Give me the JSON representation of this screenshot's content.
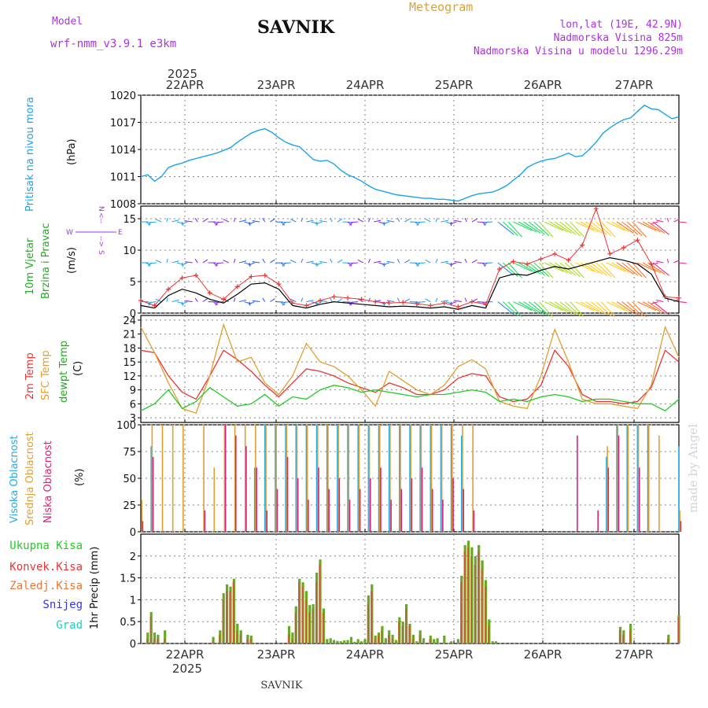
{
  "header": {
    "model_label": "Model",
    "model_name": "wrf-nmm_v3.9.1 e3km",
    "title": "SAVNIK",
    "meteogram": "Meteogram",
    "lonlat": "lon,lat (19E, 42.9N)",
    "altitude": "Nadmorska Visina 825m",
    "model_altitude": "Nadmorska Visina u modelu 1296.29m"
  },
  "top_axis": {
    "year": "2025",
    "dates": [
      "22APR",
      "23APR",
      "24APR",
      "25APR",
      "26APR",
      "27APR"
    ]
  },
  "bottom_axis": {
    "year": "2025",
    "dates": [
      "22APR",
      "23APR",
      "24APR",
      "25APR",
      "26APR",
      "27APR"
    ]
  },
  "footer": {
    "station": "SAVNIK"
  },
  "signature": "made by Angel",
  "colors": {
    "pressure": "#1aa3e8",
    "wind_speed": "#000000",
    "gust": "#ee3333",
    "temp2m": "#ee3333",
    "sfc_temp": "#e0a030",
    "dewpt": "#22cc22",
    "cloud_high": "#22aaee",
    "cloud_mid": "#e0a030",
    "cloud_low": "#dd2277",
    "precip_total": "#22cc22",
    "precip_conv": "#ee3333",
    "precip_frozen": "#ee7733",
    "snow": "#3333ee",
    "hail": "#22ccbb",
    "purple_label": "#aa33dd"
  },
  "panels": {
    "pressure": {
      "label": "Pritisak na nivou mora",
      "unit": "(hPa)",
      "ticks": [
        "1008",
        "1011",
        "1014",
        "1017",
        "1020"
      ]
    },
    "wind": {
      "label1": "10m Vjetar",
      "label2": "Brzina i Pravac",
      "unit": "(m/s)",
      "compass": {
        "n": "N",
        "s": "S",
        "w": "W",
        "e": "E",
        "up": "<--",
        "dn": "-->"
      },
      "ticks": [
        "0",
        "5",
        "10",
        "15"
      ]
    },
    "temp": {
      "label1": "2m Temp",
      "label2": "SFC Temp",
      "label3": "dewpt Temp",
      "unit": "(C)",
      "ticks": [
        "3",
        "6",
        "9",
        "12",
        "15",
        "18",
        "21",
        "24"
      ]
    },
    "cloud": {
      "label1": "Visoka Oblacnost",
      "label2": "Srednja Oblacnost",
      "label3": "Niska Oblacnost",
      "unit": "(%)",
      "ticks": [
        "0",
        "25",
        "50",
        "75",
        "100"
      ]
    },
    "precip": {
      "legend": [
        "Ukupna Kisa",
        "Konvek.Kisa",
        "Zaledj.Kisa",
        "Snijeg",
        "Grad"
      ],
      "ylabel": "1hr Precip (mm)",
      "ticks": [
        "0",
        "0.5",
        "1",
        "1.5",
        "2"
      ]
    }
  },
  "chart_data": [
    {
      "type": "line",
      "title": "Pritisak na nivou mora",
      "ylabel": "hPa",
      "ylim": [
        1008,
        1020
      ],
      "x_hours": [
        0,
        2,
        4,
        6,
        8,
        10,
        12,
        14,
        16,
        18,
        20,
        22,
        24,
        26,
        28,
        30,
        32,
        34,
        36,
        38,
        40,
        42,
        44,
        46,
        48,
        50,
        52,
        54,
        56,
        58,
        60,
        62,
        64,
        66,
        68,
        70,
        72,
        74,
        76,
        78,
        80,
        82,
        84,
        86,
        88,
        90,
        92,
        94,
        96,
        98,
        100,
        102,
        104,
        106,
        108,
        110,
        112,
        114,
        116,
        118,
        120,
        122,
        124,
        126,
        128,
        130,
        132,
        134,
        136,
        138,
        140,
        142,
        144,
        146,
        148,
        150,
        152,
        154,
        156
      ],
      "values": [
        1011,
        1011.2,
        1010.5,
        1011,
        1012,
        1012.3,
        1012.5,
        1012.8,
        1013,
        1013.2,
        1013.4,
        1013.6,
        1013.9,
        1014.2,
        1014.8,
        1015.3,
        1015.8,
        1016.1,
        1016.3,
        1015.9,
        1015.3,
        1014.8,
        1014.5,
        1014.3,
        1013.6,
        1012.9,
        1012.7,
        1012.8,
        1012.4,
        1011.7,
        1011.2,
        1010.9,
        1010.5,
        1010.0,
        1009.6,
        1009.4,
        1009.2,
        1009.0,
        1008.9,
        1008.8,
        1008.7,
        1008.6,
        1008.6,
        1008.5,
        1008.5,
        1008.4,
        1008.3,
        1008.6,
        1008.9,
        1009.1,
        1009.2,
        1009.3,
        1009.6,
        1010.0,
        1010.6,
        1011.2,
        1012.0,
        1012.4,
        1012.7,
        1012.9,
        1013.0,
        1013.3,
        1013.6,
        1013.2,
        1013.3,
        1014.0,
        1014.8,
        1015.8,
        1016.4,
        1016.9,
        1017.3,
        1017.5,
        1018.2,
        1018.9,
        1018.5,
        1018.4,
        1017.9,
        1017.4,
        1017.6
      ]
    },
    {
      "type": "line",
      "title": "10m Vjetar Brzina i Pravac",
      "ylabel": "m/s",
      "ylim": [
        0,
        17
      ],
      "series": [
        {
          "name": "wind speed",
          "x_hours": [
            0,
            4,
            8,
            12,
            16,
            20,
            24,
            28,
            32,
            36,
            40,
            44,
            48,
            52,
            56,
            60,
            64,
            68,
            72,
            76,
            80,
            84,
            88,
            92,
            96,
            100,
            104,
            108,
            112,
            116,
            120,
            124,
            128,
            132,
            136,
            140,
            144,
            148,
            152,
            156
          ],
          "values": [
            1.2,
            0.8,
            2.8,
            3.8,
            3.2,
            2.2,
            1.6,
            3.0,
            4.6,
            4.8,
            3.8,
            1.2,
            0.8,
            1.4,
            1.8,
            1.6,
            1.4,
            1.2,
            1.0,
            1.1,
            1.0,
            0.8,
            1.0,
            0.6,
            1.2,
            0.8,
            5.6,
            6.2,
            6.0,
            6.8,
            7.4,
            7.0,
            7.6,
            8.2,
            8.8,
            8.4,
            7.8,
            6.2,
            2.4,
            1.8
          ]
        },
        {
          "name": "gust",
          "x_hours": [
            0,
            4,
            8,
            12,
            16,
            20,
            24,
            28,
            32,
            36,
            40,
            44,
            48,
            52,
            56,
            60,
            64,
            68,
            72,
            76,
            80,
            84,
            88,
            92,
            96,
            100,
            104,
            108,
            112,
            116,
            120,
            124,
            128,
            132,
            136,
            140,
            144,
            148,
            152,
            156
          ],
          "values": [
            2.0,
            1.2,
            3.8,
            5.6,
            6.0,
            3.2,
            2.2,
            4.2,
            5.8,
            6.0,
            4.6,
            1.6,
            1.2,
            2.0,
            2.6,
            2.4,
            2.2,
            1.8,
            1.6,
            1.7,
            1.5,
            1.2,
            1.6,
            1.0,
            1.8,
            1.4,
            7.0,
            8.2,
            7.8,
            8.6,
            9.4,
            8.4,
            10.8,
            16.6,
            9.4,
            10.4,
            11.6,
            7.8,
            2.6,
            2.4
          ]
        }
      ]
    },
    {
      "type": "line",
      "title": "Temperature",
      "ylabel": "C",
      "ylim": [
        2,
        25
      ],
      "x_hours": [
        0,
        4,
        8,
        12,
        16,
        20,
        24,
        28,
        32,
        36,
        40,
        44,
        48,
        52,
        56,
        60,
        64,
        68,
        72,
        76,
        80,
        84,
        88,
        92,
        96,
        100,
        104,
        108,
        112,
        116,
        120,
        124,
        128,
        132,
        136,
        140,
        144,
        148,
        152,
        156
      ],
      "series": [
        {
          "name": "2m Temp",
          "values": [
            17.5,
            17.0,
            12.0,
            8.5,
            7.0,
            12.0,
            17.5,
            15.5,
            13.0,
            10.0,
            7.5,
            10.5,
            13.5,
            13.0,
            12.0,
            10.5,
            9.5,
            8.5,
            10.5,
            9.5,
            8.0,
            8.0,
            9.0,
            11.5,
            12.5,
            12.0,
            7.5,
            6.5,
            7.0,
            10.0,
            17.5,
            14.0,
            8.0,
            6.5,
            6.5,
            6.0,
            6.5,
            9.5,
            17.5,
            15.0
          ]
        },
        {
          "name": "SFC Temp",
          "values": [
            22.5,
            17.0,
            10.5,
            5.0,
            4.0,
            12.0,
            23.0,
            15.0,
            16.0,
            10.5,
            8.0,
            12.0,
            19.0,
            15.0,
            14.0,
            12.0,
            9.0,
            5.5,
            13.0,
            11.0,
            9.0,
            8.0,
            10.0,
            14.0,
            15.5,
            13.5,
            6.5,
            5.5,
            5.0,
            12.0,
            22.0,
            15.0,
            7.0,
            6.0,
            6.0,
            5.5,
            5.0,
            10.0,
            22.5,
            16.0
          ]
        },
        {
          "name": "dewpt Temp",
          "values": [
            4.5,
            6.0,
            9.0,
            5.0,
            6.5,
            9.5,
            7.5,
            5.5,
            6.0,
            8.0,
            5.5,
            7.5,
            7.0,
            9.0,
            10.0,
            9.5,
            8.5,
            9.0,
            8.5,
            8.0,
            7.5,
            8.0,
            8.0,
            8.5,
            9.0,
            8.5,
            6.5,
            7.0,
            6.5,
            7.5,
            8.0,
            7.5,
            6.5,
            7.0,
            7.0,
            6.5,
            6.0,
            6.0,
            4.5,
            7.0
          ]
        }
      ]
    },
    {
      "type": "bar",
      "title": "Oblacnost",
      "ylabel": "%",
      "ylim": [
        0,
        100
      ],
      "x_hours": [
        0,
        3,
        6,
        9,
        12,
        15,
        18,
        21,
        24,
        27,
        30,
        33,
        36,
        39,
        42,
        45,
        48,
        51,
        54,
        57,
        60,
        63,
        66,
        69,
        72,
        75,
        78,
        81,
        84,
        87,
        90,
        93,
        96,
        99,
        102,
        105,
        108,
        111,
        114,
        117,
        120,
        123,
        126,
        129,
        132,
        135,
        138,
        141,
        144,
        147,
        150,
        153,
        156
      ],
      "series": [
        {
          "name": "Visoka Oblacnost",
          "values": [
            0,
            80,
            0,
            0,
            0,
            0,
            0,
            0,
            0,
            0,
            0,
            60,
            100,
            100,
            100,
            100,
            100,
            100,
            100,
            100,
            100,
            100,
            100,
            100,
            100,
            100,
            100,
            100,
            100,
            100,
            100,
            90,
            0,
            0,
            0,
            0,
            0,
            0,
            0,
            0,
            0,
            0,
            0,
            0,
            0,
            70,
            100,
            100,
            100,
            100,
            0,
            0,
            80
          ]
        },
        {
          "name": "Srednja Oblacnost",
          "values": [
            30,
            100,
            100,
            100,
            100,
            0,
            100,
            60,
            100,
            100,
            100,
            100,
            100,
            100,
            100,
            100,
            100,
            100,
            100,
            100,
            100,
            100,
            100,
            100,
            100,
            100,
            100,
            100,
            100,
            100,
            100,
            100,
            100,
            0,
            0,
            0,
            0,
            0,
            0,
            0,
            0,
            0,
            0,
            0,
            0,
            80,
            100,
            100,
            100,
            100,
            90,
            0,
            20
          ]
        },
        {
          "name": "Niska Oblacnost",
          "values": [
            10,
            70,
            0,
            0,
            0,
            0,
            20,
            0,
            100,
            90,
            80,
            60,
            20,
            40,
            70,
            50,
            30,
            60,
            40,
            50,
            30,
            40,
            50,
            60,
            30,
            40,
            50,
            60,
            40,
            30,
            50,
            40,
            20,
            0,
            0,
            0,
            0,
            0,
            0,
            0,
            0,
            0,
            90,
            0,
            20,
            60,
            90,
            0,
            60,
            0,
            0,
            0,
            10
          ]
        }
      ]
    },
    {
      "type": "bar",
      "title": "1hr Precip",
      "ylabel": "mm",
      "ylim": [
        0,
        2.5
      ],
      "x_hours": [
        2,
        3,
        4,
        5,
        7,
        21,
        23,
        24,
        25,
        26,
        27,
        28,
        29,
        31,
        32,
        43,
        44,
        45,
        46,
        47,
        48,
        49,
        50,
        51,
        52,
        53,
        54,
        55,
        56,
        57,
        58,
        59,
        60,
        61,
        62,
        63,
        64,
        65,
        66,
        67,
        68,
        69,
        70,
        71,
        72,
        73,
        74,
        75,
        76,
        77,
        78,
        79,
        80,
        81,
        82,
        84,
        85,
        86,
        88,
        90,
        92,
        93,
        94,
        95,
        96,
        97,
        98,
        99,
        100,
        101,
        102,
        103,
        139,
        140,
        142,
        153,
        156
      ],
      "series": [
        {
          "name": "Ukupna Kisa",
          "values": [
            0.25,
            0.72,
            0.25,
            0.2,
            0.3,
            0.15,
            0.3,
            1.15,
            1.35,
            1.3,
            1.48,
            0.45,
            0.3,
            0.2,
            0.18,
            0.4,
            0.25,
            0.85,
            1.48,
            1.4,
            1.2,
            0.88,
            0.9,
            1.62,
            1.92,
            0.8,
            0.1,
            0.12,
            0.08,
            0.06,
            0.05,
            0.07,
            0.08,
            0.15,
            0.04,
            0.1,
            0.05,
            0.1,
            1.1,
            1.35,
            0.18,
            0.25,
            0.4,
            0.12,
            0.3,
            0.2,
            0.08,
            0.6,
            0.5,
            0.9,
            0.45,
            0.2,
            0.05,
            0.3,
            0.12,
            0.18,
            0.1,
            0.12,
            0.18,
            0.05,
            0.1,
            1.55,
            2.25,
            2.35,
            2.2,
            2.0,
            2.25,
            1.9,
            1.45,
            0.55,
            0.05,
            0.05,
            0.38,
            0.3,
            0.45,
            0.2,
            0.65
          ]
        },
        {
          "name": "Konvek.Kisa",
          "values": [
            0.1,
            0.6,
            0.1,
            0.1,
            0.1,
            0.05,
            0.2,
            1.0,
            1.2,
            1.2,
            1.4,
            0.3,
            0.2,
            0.1,
            0.1,
            0.2,
            0.1,
            0.7,
            1.4,
            1.3,
            1.0,
            0.7,
            0.8,
            1.4,
            1.8,
            0.7,
            0,
            0,
            0,
            0,
            0,
            0,
            0,
            0,
            0,
            0,
            0,
            0,
            0.9,
            1.2,
            0.1,
            0.2,
            0.3,
            0,
            0.2,
            0.1,
            0,
            0.5,
            0.4,
            0.8,
            0.4,
            0.1,
            0,
            0.2,
            0,
            0.1,
            0,
            0,
            0,
            0,
            0,
            1.4,
            2.1,
            2.2,
            2.0,
            1.8,
            2.1,
            1.7,
            1.3,
            0.4,
            0,
            0,
            0.3,
            0.2,
            0.3,
            0.1,
            0.6
          ]
        },
        {
          "name": "Zaledj.Kisa",
          "values": []
        },
        {
          "name": "Snijeg",
          "values": []
        },
        {
          "name": "Grad",
          "values": []
        }
      ]
    }
  ]
}
